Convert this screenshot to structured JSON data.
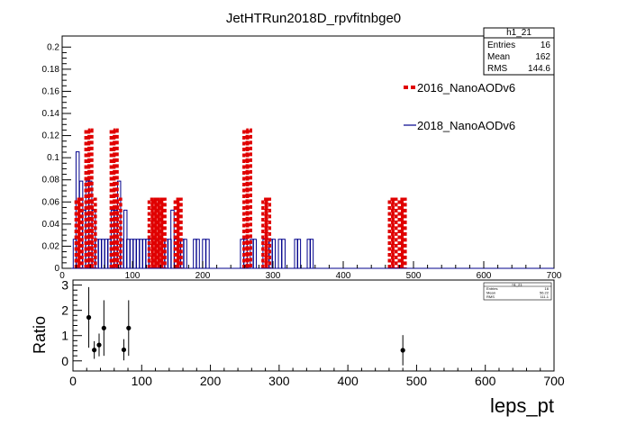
{
  "chart_data": [
    {
      "type": "histogram",
      "title": "JetHTRun2018D_rpvfitnbge0",
      "xlim": [
        0,
        700
      ],
      "ylim": [
        0,
        0.21
      ],
      "bin_width": 4.5,
      "x_ticks": [
        0,
        100,
        200,
        300,
        400,
        500,
        600,
        700
      ],
      "y_ticks": [
        0,
        0.02,
        0.04,
        0.06,
        0.08,
        0.1,
        0.12,
        0.14,
        0.16,
        0.18,
        0.2
      ],
      "legend": [
        {
          "name": "2016_NanoAODv6",
          "color": "#e00000",
          "style": "dashed"
        },
        {
          "name": "2018_NanoAODv6",
          "color": "#00008b",
          "style": "solid"
        }
      ],
      "series": [
        {
          "name": "2016_NanoAODv6",
          "x": [
            22,
            26,
            36,
            40,
            45,
            72,
            76,
            81,
            126,
            131,
            135,
            140,
            144,
            163,
            167,
            261,
            266,
            288,
            293,
            468,
            473,
            482,
            486
          ],
          "values": [
            0.0625,
            0.0625,
            0.125,
            0.125,
            0.0625,
            0.125,
            0.125,
            0.0625,
            0.0625,
            0.0625,
            0.0625,
            0.0625,
            0.0625,
            0.0625,
            0.0625,
            0.125,
            0.125,
            0.0625,
            0.0625,
            0.0625,
            0.0625,
            0.0625,
            0.0625
          ]
        },
        {
          "name": "2018_NanoAODv6",
          "x": [
            18,
            22,
            27,
            31,
            36,
            40,
            45,
            49,
            54,
            58,
            63,
            67,
            72,
            76,
            81,
            85,
            90,
            94,
            99,
            103,
            108,
            112,
            117,
            121,
            126,
            130,
            135,
            139,
            144,
            148,
            153,
            157,
            162,
            166,
            171,
            175,
            180,
            184,
            189,
            193,
            198,
            202,
            207,
            211,
            216,
            220,
            225,
            229,
            234,
            238,
            243,
            247,
            252,
            256,
            261,
            265,
            270,
            274,
            279,
            283,
            288,
            292,
            297,
            301,
            306,
            310,
            315,
            319,
            324,
            328,
            333,
            337,
            342,
            346,
            351,
            355,
            360,
            364
          ],
          "values": [
            0.0263,
            0.1053,
            0.0789,
            0.0526,
            0.0789,
            0.0789,
            0.0526,
            0.0263,
            0.0263,
            0.0263,
            0.0263,
            0.0263,
            0.0526,
            0.0526,
            0.0789,
            0.0263,
            0.0526,
            0.0263,
            0.0263,
            0.0263,
            0.0263,
            0.0263,
            0.0263,
            0.0263,
            0.0263,
            0.0263,
            0.0263,
            0.0263,
            0.0263,
            0.0263,
            0.0263,
            0.0526,
            0.0263,
            0.0263,
            0.0263,
            0.0263,
            0.0,
            0.0,
            0.0263,
            0.0263,
            0.0,
            0.0263,
            0.0263,
            0.0,
            0.0,
            0.0,
            0.0,
            0.0,
            0.0,
            0.0,
            0.0,
            0.0,
            0.0,
            0.0263,
            0.0263,
            0.0,
            0.0263,
            0.0263,
            0.0,
            0.0,
            0.0263,
            0.0263,
            0.0263,
            0.0263,
            0.0,
            0.0263,
            0.0263,
            0.0,
            0.0,
            0.0,
            0.0263,
            0.0263,
            0.0,
            0.0,
            0.0263,
            0.0263,
            0.0,
            0.0
          ]
        }
      ],
      "stats_box": {
        "name": "h1_21",
        "rows": [
          {
            "label": "Entries",
            "value": "16"
          },
          {
            "label": "Mean",
            "value": "162"
          },
          {
            "label": "RMS",
            "value": "144.6"
          }
        ]
      }
    },
    {
      "type": "scatter",
      "xlabel": "leps_pt",
      "ylabel": "Ratio",
      "xlim": [
        0,
        700
      ],
      "ylim": [
        -0.4,
        3.2
      ],
      "x_ticks": [
        0,
        100,
        200,
        300,
        400,
        500,
        600,
        700
      ],
      "y_ticks": [
        0,
        1,
        2,
        3
      ],
      "points": [
        {
          "x": 23,
          "y": 1.72,
          "err": 1.2
        },
        {
          "x": 31,
          "y": 0.43,
          "err": 0.35
        },
        {
          "x": 38,
          "y": 0.63,
          "err": 0.45
        },
        {
          "x": 45,
          "y": 1.3,
          "err": 1.1
        },
        {
          "x": 74,
          "y": 0.44,
          "err": 0.42
        },
        {
          "x": 81,
          "y": 1.3,
          "err": 1.1
        },
        {
          "x": 480,
          "y": 0.42,
          "err": 0.6
        }
      ],
      "stats_box": {
        "name": "h1_21",
        "rows": [
          {
            "label": "Entries",
            "value": "16"
          },
          {
            "label": "Mean",
            "value": "56.22"
          },
          {
            "label": "RMS",
            "value": "111.1"
          }
        ]
      }
    }
  ]
}
